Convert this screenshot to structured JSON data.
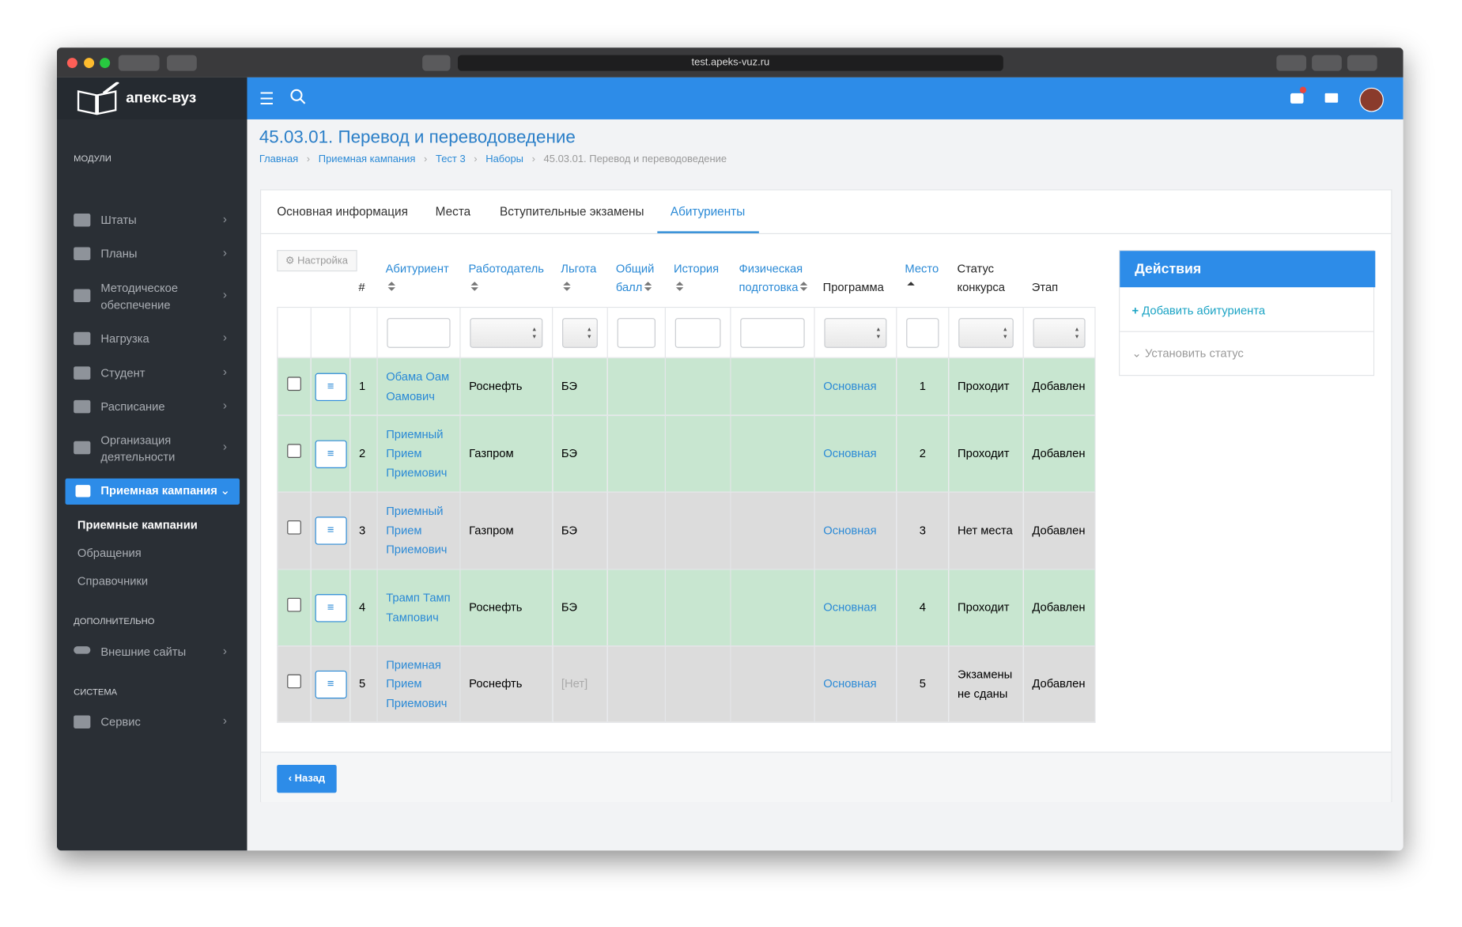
{
  "browser": {
    "url": "test.apeks-vuz.ru"
  },
  "sidebar": {
    "logo": "апекс-вуз",
    "modules": "МОДУЛИ",
    "items": [
      "Штаты",
      "Планы",
      "Методическое обеспечение",
      "Нагрузка",
      "Студент",
      "Расписание",
      "Организация деятельности"
    ],
    "active": "Приемная кампания",
    "subitems": [
      "Приемные кампании",
      "Обращения",
      "Справочники"
    ],
    "extra": "ДОПОЛНИТЕЛЬНО",
    "extra_item": "Внешние сайты",
    "system": "СИСТЕМА",
    "system_item": "Сервис"
  },
  "header": {
    "title": "45.03.01. Перевод и переводоведение",
    "breadcrumbs": [
      "Главная",
      "Приемная кампания",
      "Тест 3",
      "Наборы",
      "45.03.01. Перевод и переводоведение"
    ]
  },
  "tabs": {
    "items": [
      "Основная информация",
      "Места",
      "Вступительные экзамены",
      "Абитуриенты"
    ],
    "active": 3
  },
  "table": {
    "settings": "Настройка",
    "headers": [
      {
        "label": "#",
        "sort": "none",
        "filter": "none"
      },
      {
        "label": "Абитуриент",
        "sort": "both",
        "filter": "text"
      },
      {
        "label": "Работодатель",
        "sort": "both",
        "filter": "select"
      },
      {
        "label": "Льгота",
        "sort": "both",
        "filter": "select"
      },
      {
        "label": "Общий балл",
        "sort": "both",
        "filter": "text"
      },
      {
        "label": "История",
        "sort": "both",
        "filter": "text"
      },
      {
        "label": "Физическая подготовка",
        "sort": "both",
        "filter": "text"
      },
      {
        "label": "Программа",
        "sort": "none",
        "filter": "select"
      },
      {
        "label": "Место",
        "sort": "asc",
        "filter": "text"
      },
      {
        "label": "Статус конкурса",
        "sort": "none",
        "filter": "select"
      },
      {
        "label": "Этап",
        "sort": "none",
        "filter": "select"
      }
    ],
    "rows": [
      {
        "num": 1,
        "name": "Обама Оам Оамович",
        "employer": "Роснефть",
        "benefit": "БЭ",
        "program": "Основная",
        "place": 1,
        "status": "Проходит",
        "stage": "Добавлен",
        "color": "#c8e6d0"
      },
      {
        "num": 2,
        "name": "Приемный Прием Приемович",
        "employer": "Газпром",
        "benefit": "БЭ",
        "program": "Основная",
        "place": 2,
        "status": "Проходит",
        "stage": "Добавлен",
        "color": "#c8e6d0"
      },
      {
        "num": 3,
        "name": "Приемный Прием Приемович",
        "employer": "Газпром",
        "benefit": "БЭ",
        "program": "Основная",
        "place": 3,
        "status": "Нет места",
        "stage": "Добавлен",
        "color": "#dcdcdc"
      },
      {
        "num": 4,
        "name": "Трамп Тамп Тампович",
        "employer": "Роснефть",
        "benefit": "БЭ",
        "program": "Основная",
        "place": 4,
        "status": "Проходит",
        "stage": "Добавлен",
        "color": "#c8e6d0"
      },
      {
        "num": 5,
        "name": "Приемная Прием Приемович",
        "employer": "Роснефть",
        "benefit": "[Нет]",
        "program": "Основная",
        "place": 5,
        "status": "Экзамены не сданы",
        "stage": "Добавлен",
        "color": "#dcdcdc"
      }
    ]
  },
  "actions": {
    "title": "Действия",
    "add": "Добавить абитуриента",
    "status": "Установить статус"
  },
  "footer": {
    "back": "Назад"
  }
}
